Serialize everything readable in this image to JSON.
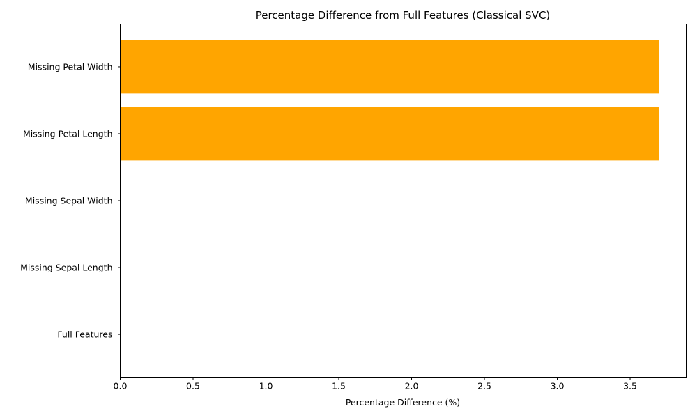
{
  "chart_data": {
    "type": "bar",
    "orientation": "horizontal",
    "title": "Percentage Difference from Full Features (Classical SVC)",
    "xlabel": "Percentage Difference (%)",
    "ylabel": "",
    "categories": [
      "Full Features",
      "Missing Sepal Length",
      "Missing Sepal Width",
      "Missing Petal Length",
      "Missing Petal Width"
    ],
    "values": [
      0,
      0,
      0,
      3.7,
      3.7
    ],
    "bar_color": "#ffa500",
    "xlim": [
      0,
      3.885
    ],
    "xticks": [
      "0.0",
      "0.5",
      "1.0",
      "1.5",
      "2.0",
      "2.5",
      "3.0",
      "3.5"
    ],
    "grid": false,
    "legend": "none"
  }
}
